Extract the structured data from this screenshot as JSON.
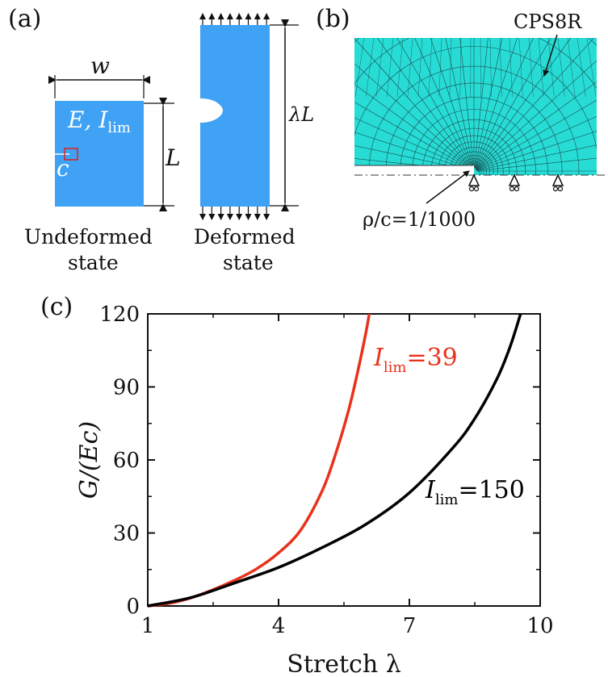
{
  "panel_a": {
    "label": "(a)",
    "width_label": "w",
    "material_E": "E, ",
    "material_I": "I",
    "material_I_sub": "lim",
    "crack_label": "c",
    "length_label": "L",
    "stretched_length_label": "λL",
    "undeformed_caption_1": "Undeformed",
    "undeformed_caption_2": "state",
    "deformed_caption_1": "Deformed",
    "deformed_caption_2": "state"
  },
  "panel_b": {
    "label": "(b)",
    "element_label": "CPS8R",
    "ratio_label": "ρ/c=1/1000"
  },
  "chart_data": {
    "panel_label": "(c)",
    "type": "line",
    "xlabel": "Stretch λ",
    "ylabel": "G/(Ec)",
    "xlim": [
      1,
      10
    ],
    "ylim": [
      0,
      120
    ],
    "xticks": [
      1,
      4,
      7,
      10
    ],
    "yticks": [
      0,
      30,
      60,
      90,
      120
    ],
    "grid": false,
    "series": [
      {
        "name": "I_lim=39",
        "label_main": "I",
        "label_sub": "lim",
        "label_value": "=39",
        "color": "#e8321c",
        "x": [
          1.0,
          1.5,
          2.0,
          2.5,
          3.0,
          3.5,
          4.0,
          4.5,
          5.0,
          5.3,
          5.6,
          5.8,
          6.0,
          6.08
        ],
        "y": [
          0,
          1.1,
          3.4,
          6.7,
          10.6,
          15.3,
          21.8,
          31.0,
          47.3,
          62.0,
          80.0,
          95.0,
          112.0,
          120.0
        ]
      },
      {
        "name": "I_lim=150",
        "label_main": "I",
        "label_sub": "lim",
        "label_value": "=150",
        "color": "#000000",
        "x": [
          1.0,
          2.0,
          3.0,
          4.0,
          5.0,
          6.0,
          7.0,
          8.0,
          8.5,
          9.0,
          9.3,
          9.55
        ],
        "y": [
          0,
          3.5,
          9.5,
          15.8,
          24.0,
          33.5,
          46.5,
          65.0,
          77.0,
          93.0,
          106.0,
          120.0
        ]
      }
    ]
  }
}
